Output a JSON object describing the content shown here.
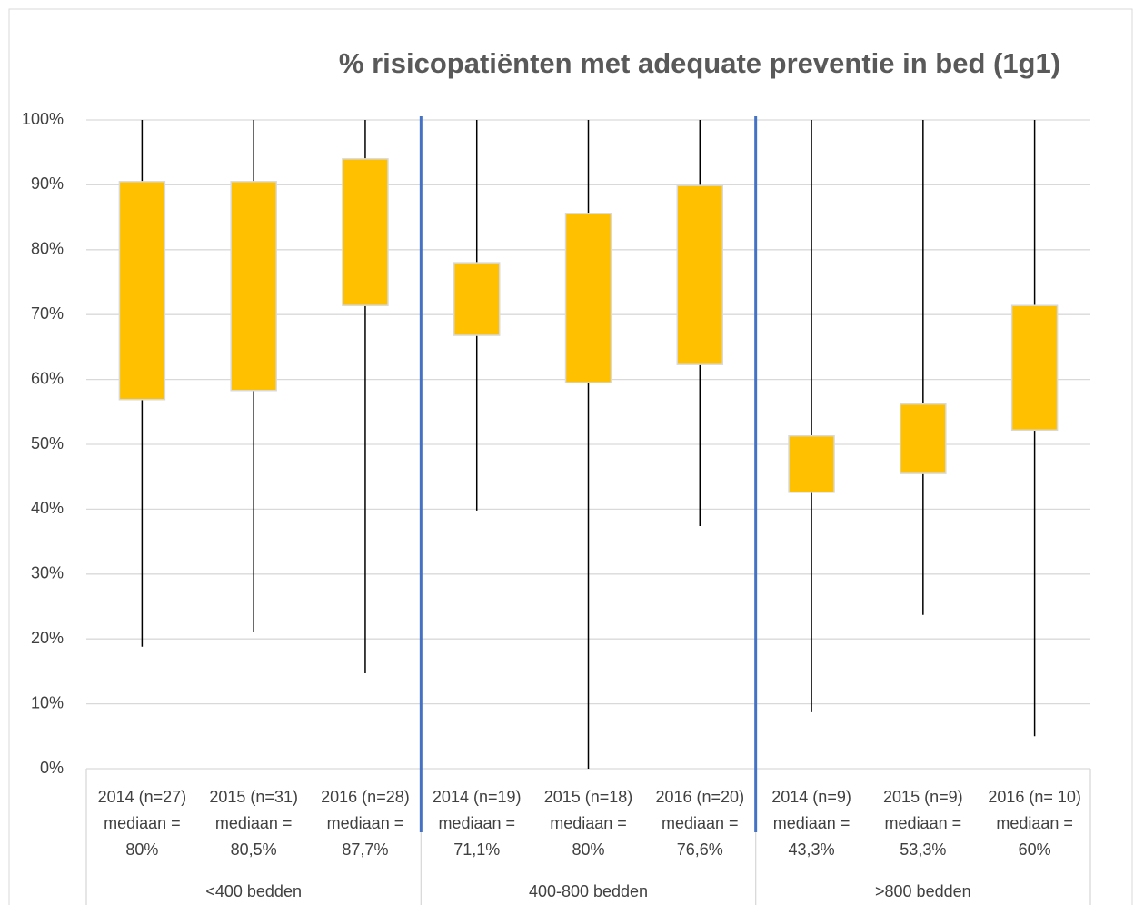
{
  "chart_data": {
    "type": "box",
    "title": "% risicopatiënten met adequate preventie in bed (1g1)",
    "categories": [
      [
        "2014 (n=27)",
        "mediaan =",
        "80%"
      ],
      [
        "2015 (n=31)",
        "mediaan =",
        "80,5%"
      ],
      [
        "2016 (n=28)",
        "mediaan =",
        "87,7%"
      ],
      [
        "2014 (n=19)",
        "mediaan =",
        "71,1%"
      ],
      [
        "2015 (n=18)",
        "mediaan =",
        "80%"
      ],
      [
        "2016 (n=20)",
        "mediaan =",
        "76,6%"
      ],
      [
        "2014 (n=9)",
        "mediaan =",
        "43,3%"
      ],
      [
        "2015 (n=9)",
        "mediaan =",
        "53,3%"
      ],
      [
        "2016 (n= 10)",
        "mediaan =",
        "60%"
      ]
    ],
    "groups": [
      "<400 bedden",
      "400-800 bedden",
      ">800 bedden"
    ],
    "boxes": [
      {
        "min": 18.8,
        "q1": 56.9,
        "q3": 90.5,
        "max": 100
      },
      {
        "min": 21.1,
        "q1": 58.3,
        "q3": 90.5,
        "max": 100
      },
      {
        "min": 14.7,
        "q1": 71.4,
        "q3": 94.0,
        "max": 100
      },
      {
        "min": 39.8,
        "q1": 66.8,
        "q3": 78.0,
        "max": 100
      },
      {
        "min": 0,
        "q1": 59.5,
        "q3": 85.6,
        "max": 100
      },
      {
        "min": 37.4,
        "q1": 62.3,
        "q3": 89.9,
        "max": 100
      },
      {
        "min": 8.7,
        "q1": 42.6,
        "q3": 51.3,
        "max": 100
      },
      {
        "min": 23.7,
        "q1": 45.5,
        "q3": 56.2,
        "max": 100
      },
      {
        "min": 5.0,
        "q1": 52.2,
        "q3": 71.4,
        "max": 100
      }
    ],
    "color": "#ffc000",
    "ylim": [
      0,
      100
    ],
    "yticks": [
      {
        "value": 0,
        "label": "0%"
      },
      {
        "value": 10,
        "label": "10%"
      },
      {
        "value": 20,
        "label": "20%"
      },
      {
        "value": 30,
        "label": "30%"
      },
      {
        "value": 40,
        "label": "40%"
      },
      {
        "value": 50,
        "label": "50%"
      },
      {
        "value": 60,
        "label": "60%"
      },
      {
        "value": 70,
        "label": "70%"
      },
      {
        "value": 80,
        "label": "80%"
      },
      {
        "value": 90,
        "label": "90%"
      },
      {
        "value": 100,
        "label": "100%"
      }
    ],
    "grid": true
  }
}
